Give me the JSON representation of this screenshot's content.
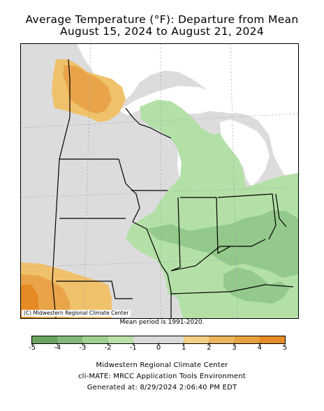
{
  "title_line1": "Average Temperature (°F): Departure from Mean",
  "title_line2": "August 15, 2024 to August 21, 2024",
  "map": {
    "credit": "(C) Midwestern Regional Climate Center",
    "colors": {
      "land_neutral": "#dcdcdc",
      "water": "#ffffff",
      "cool_1": "#b3e0a6",
      "cool_2": "#93c98a",
      "warm_1": "#f0c16b",
      "warm_2": "#e9a449",
      "warm_3": "#e58a24",
      "borders": "#000000",
      "grid": "#a0a0a0"
    }
  },
  "mean_period": "Mean period is 1991-2020.",
  "legend": {
    "labels": [
      "-5",
      "-4",
      "-3",
      "-2",
      "-1",
      "0",
      "1",
      "2",
      "3",
      "4",
      "5"
    ],
    "colors": [
      "#6aa460",
      "#84b878",
      "#9fcf8f",
      "#b8e0a8",
      "#d9d9d9",
      "#d9d9d9",
      "#f3cf86",
      "#ecb45e",
      "#e7a03f",
      "#e58a24"
    ]
  },
  "footer": {
    "line1": "Midwestern Regional Climate Center",
    "line2": "cli-MATE: MRCC Application Tools Environment",
    "line3": "Generated at: 8/29/2024 2:06:40 PM EDT"
  }
}
